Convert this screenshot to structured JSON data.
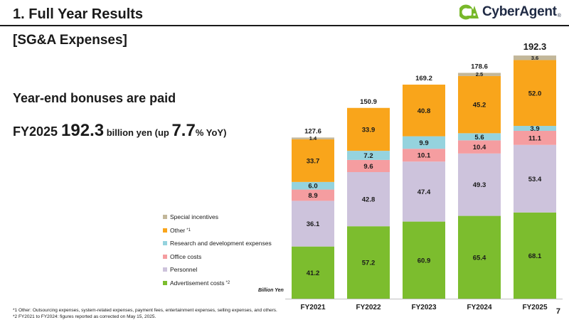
{
  "header": {
    "title": "1.  Full Year Results",
    "logo_text": "CyberAgent",
    "logo_reg": "®"
  },
  "subtitle": "[SG&A Expenses]",
  "headline": "Year-end bonuses are paid",
  "kpi": {
    "fy": "FY2025 ",
    "value": "192.3",
    "unit": " billion yen (up ",
    "pct": "7.7",
    "pct_unit": "% YoY)"
  },
  "legend": {
    "special": "Special incentives",
    "other": "Other",
    "other_note": "*1",
    "rnd": "Research and development expenses",
    "office": "Office costs",
    "personnel": "Personnel",
    "advertisement": "Advertisement costs",
    "advertisement_note": "*2"
  },
  "unit_label": "Billion Yen",
  "footnotes": {
    "note1": "*1  Other: Outsourcing expenses, system-related expenses, payment fees, entertainment expenses, selling expenses, and others.",
    "note2": "*2  FY2021 to FY2024: figures reported as corrected on May 15, 2025."
  },
  "page_number": "7",
  "colors": {
    "advertisement": "#7cbd2e",
    "personnel": "#cdc3dc",
    "office": "#f59da0",
    "rnd": "#95d3de",
    "other": "#f9a51b",
    "special": "#c2b79a",
    "text": "#1a1a1a"
  },
  "chart_data": {
    "type": "bar",
    "stacked": true,
    "title": "",
    "ylabel": "Billion Yen",
    "categories": [
      "FY2021",
      "FY2022",
      "FY2023",
      "FY2024",
      "FY2025"
    ],
    "series": [
      {
        "name": "Advertisement costs",
        "key": "advertisement",
        "values": [
          41.2,
          57.2,
          60.9,
          65.4,
          68.1
        ]
      },
      {
        "name": "Personnel",
        "key": "personnel",
        "values": [
          36.1,
          42.8,
          47.4,
          49.3,
          53.4
        ]
      },
      {
        "name": "Office costs",
        "key": "office",
        "values": [
          8.9,
          9.6,
          10.1,
          10.4,
          11.1
        ]
      },
      {
        "name": "Research and development expenses",
        "key": "rnd",
        "values": [
          6.0,
          7.2,
          9.9,
          5.6,
          3.9
        ]
      },
      {
        "name": "Other",
        "key": "other",
        "values": [
          33.7,
          33.9,
          40.8,
          45.2,
          52.0
        ]
      },
      {
        "name": "Special incentives",
        "key": "special",
        "values": [
          1.4,
          0,
          0,
          2.5,
          3.6
        ]
      }
    ],
    "value_labels": [
      [
        "41.2",
        "36.1",
        "8.9",
        "6.0",
        "33.7",
        "1.4"
      ],
      [
        "57.2",
        "42.8",
        "9.6",
        "7.2",
        "33.9",
        ""
      ],
      [
        "60.9",
        "47.4",
        "10.1",
        "9.9",
        "40.8",
        ""
      ],
      [
        "65.4",
        "49.3",
        "10.4",
        "5.6",
        "45.2",
        "2.5"
      ],
      [
        "68.1",
        "53.4",
        "11.1",
        "3.9",
        "52.0",
        "3.6"
      ]
    ],
    "totals": [
      "127.6",
      "150.9",
      "169.2",
      "178.6",
      "192.3"
    ],
    "ylim": [
      0,
      200
    ]
  }
}
